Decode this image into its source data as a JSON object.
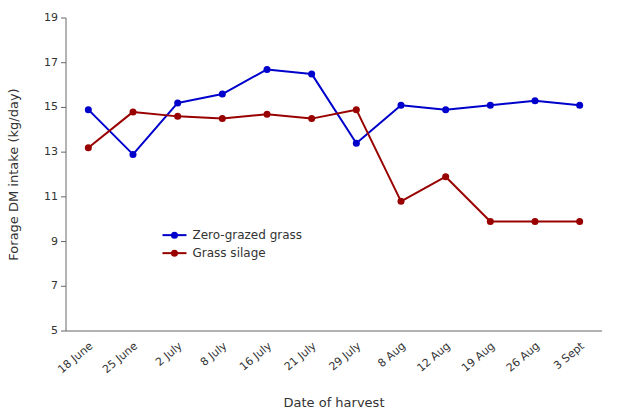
{
  "chart_data": {
    "type": "line",
    "categories": [
      "18 June",
      "25 June",
      "2 July",
      "8 July",
      "16 July",
      "21 July",
      "29 July",
      "8 Aug",
      "12 Aug",
      "19 Aug",
      "26 Aug",
      "3 Sept"
    ],
    "series": [
      {
        "name": "Zero-grazed grass",
        "color": "#0000cc",
        "marker": "circle",
        "values": [
          14.9,
          12.9,
          15.2,
          15.6,
          16.7,
          16.5,
          13.4,
          15.1,
          14.9,
          15.1,
          15.3,
          15.1
        ]
      },
      {
        "name": "Grass silage",
        "color": "#990000",
        "marker": "circle",
        "values": [
          13.2,
          14.8,
          14.6,
          14.5,
          14.7,
          14.5,
          14.9,
          10.8,
          11.9,
          9.9,
          9.9,
          9.9
        ]
      }
    ],
    "xlabel": "Date of harvest",
    "ylabel": "Forage DM intake (kg/day)",
    "ylim": [
      5,
      19
    ],
    "yticks": [
      5,
      7,
      9,
      11,
      13,
      15,
      17,
      19
    ],
    "grid": false,
    "legend": "lower left"
  }
}
